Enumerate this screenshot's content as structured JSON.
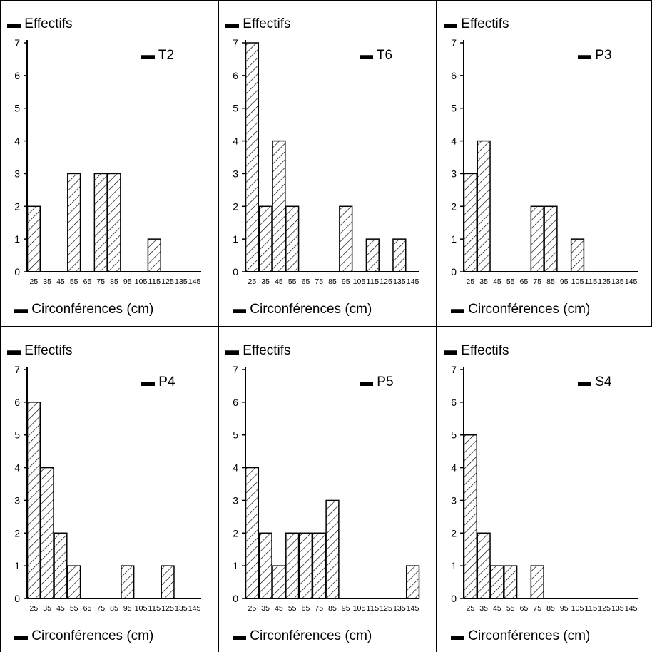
{
  "figure": {
    "y_label": "Effectifs",
    "x_label": "Circonférences (cm)",
    "bullet": "▬"
  },
  "chart_data": [
    {
      "type": "bar",
      "title": "T2",
      "xlabel": "Circonférences (cm)",
      "ylabel": "Effectifs",
      "categories": [
        "25",
        "35",
        "45",
        "55",
        "65",
        "75",
        "85",
        "95",
        "105",
        "115",
        "125",
        "135",
        "145"
      ],
      "values": [
        2,
        0,
        0,
        3,
        0,
        3,
        3,
        0,
        0,
        1,
        0,
        0,
        0
      ],
      "yticks": [
        "0",
        "1",
        "2",
        "3",
        "4",
        "5",
        "6",
        "7"
      ],
      "ylim": [
        0,
        7
      ],
      "grid": false
    },
    {
      "type": "bar",
      "title": "T6",
      "xlabel": "Circonférences (cm)",
      "ylabel": "Effectifs",
      "categories": [
        "25",
        "35",
        "45",
        "55",
        "65",
        "75",
        "85",
        "95",
        "105",
        "115",
        "125",
        "135",
        "145"
      ],
      "values": [
        7,
        2,
        4,
        2,
        0,
        0,
        0,
        2,
        0,
        1,
        0,
        1,
        0
      ],
      "yticks": [
        "0",
        "1",
        "2",
        "3",
        "4",
        "5",
        "6",
        "7"
      ],
      "ylim": [
        0,
        7
      ],
      "grid": false
    },
    {
      "type": "bar",
      "title": "P3",
      "xlabel": "Circonférences (cm)",
      "ylabel": "Effectifs",
      "categories": [
        "25",
        "35",
        "45",
        "55",
        "65",
        "75",
        "85",
        "95",
        "105",
        "115",
        "125",
        "135",
        "145"
      ],
      "values": [
        3,
        4,
        0,
        0,
        0,
        2,
        2,
        0,
        1,
        0,
        0,
        0,
        0
      ],
      "yticks": [
        "0",
        "1",
        "2",
        "3",
        "4",
        "5",
        "6",
        "7"
      ],
      "ylim": [
        0,
        7
      ],
      "grid": false
    },
    {
      "type": "bar",
      "title": "P4",
      "xlabel": "Circonférences (cm)",
      "ylabel": "Effectifs",
      "categories": [
        "25",
        "35",
        "45",
        "55",
        "65",
        "75",
        "85",
        "95",
        "105",
        "115",
        "125",
        "135",
        "145"
      ],
      "values": [
        6,
        4,
        2,
        1,
        0,
        0,
        0,
        1,
        0,
        0,
        1,
        0,
        0
      ],
      "yticks": [
        "0",
        "1",
        "2",
        "3",
        "4",
        "5",
        "6",
        "7"
      ],
      "ylim": [
        0,
        7
      ],
      "grid": false
    },
    {
      "type": "bar",
      "title": "P5",
      "xlabel": "Circonférences (cm)",
      "ylabel": "Effectifs",
      "categories": [
        "25",
        "35",
        "45",
        "55",
        "65",
        "75",
        "85",
        "95",
        "105",
        "115",
        "125",
        "135",
        "145"
      ],
      "values": [
        4,
        2,
        1,
        2,
        2,
        2,
        3,
        0,
        0,
        0,
        0,
        0,
        1
      ],
      "yticks": [
        "0",
        "1",
        "2",
        "3",
        "4",
        "5",
        "6",
        "7"
      ],
      "ylim": [
        0,
        7
      ],
      "grid": false
    },
    {
      "type": "bar",
      "title": "S4",
      "xlabel": "Circonférences (cm)",
      "ylabel": "Effectifs",
      "categories": [
        "25",
        "35",
        "45",
        "55",
        "65",
        "75",
        "85",
        "95",
        "105",
        "115",
        "125",
        "135",
        "145"
      ],
      "values": [
        5,
        2,
        1,
        1,
        0,
        1,
        0,
        0,
        0,
        0,
        0,
        0,
        0
      ],
      "yticks": [
        "0",
        "1",
        "2",
        "3",
        "4",
        "5",
        "6",
        "7"
      ],
      "ylim": [
        0,
        7
      ],
      "grid": false
    }
  ]
}
